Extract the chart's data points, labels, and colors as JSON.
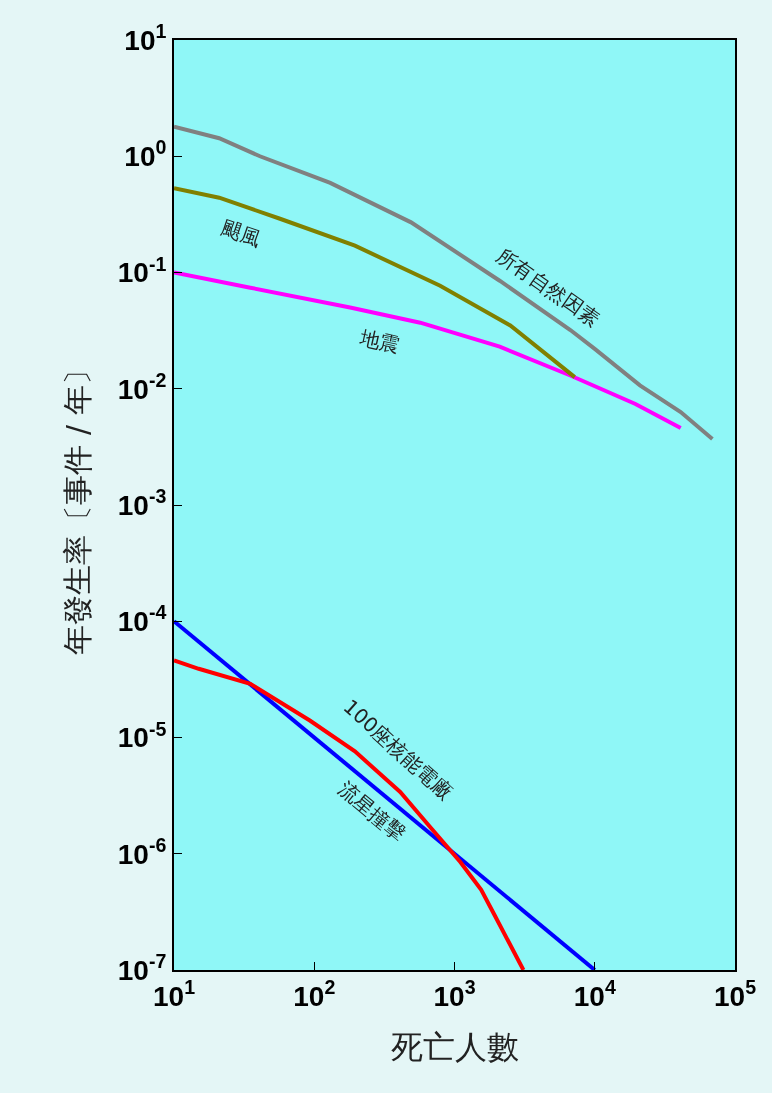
{
  "chart_data": {
    "type": "line",
    "xlabel": "死亡人數",
    "ylabel": "年發生率〔事件 / 年〕",
    "log": "xy",
    "grid": false,
    "legend": false,
    "marker": "none",
    "line_style": "solid",
    "xlim": [
      10,
      100000
    ],
    "ylim": [
      1e-07,
      10
    ],
    "xticks": [
      {
        "value": 10,
        "label": "10$^{1}$"
      },
      {
        "value": 100,
        "label": "10$^{2}$"
      },
      {
        "value": 1000,
        "label": "10$^{3}$"
      },
      {
        "value": 10000,
        "label": "10$^{4}$"
      },
      {
        "value": 100000,
        "label": "10$^{5}$"
      }
    ],
    "yticks": [
      {
        "value": 1e-07,
        "label": "10$^{-7}$"
      },
      {
        "value": 1e-06,
        "label": "10$^{-6}$"
      },
      {
        "value": 1e-05,
        "label": "10$^{-5}$"
      },
      {
        "value": 0.0001,
        "label": "10$^{-4}$"
      },
      {
        "value": 0.001,
        "label": "10$^{-3}$"
      },
      {
        "value": 0.01,
        "label": "10$^{-2}$"
      },
      {
        "value": 0.1,
        "label": "10$^{-1}$"
      },
      {
        "value": 1,
        "label": "10$^{0}$"
      },
      {
        "value": 10,
        "label": "10$^{1}$"
      }
    ],
    "series": [
      {
        "name": "所有自然因素",
        "color": "#808080",
        "x": [
          10,
          21,
          41,
          130,
          490,
          2100,
          6700,
          10000,
          21000,
          41000,
          69000
        ],
        "values": [
          1.8,
          1.43,
          1.0,
          0.59,
          0.27,
          0.085,
          0.032,
          0.022,
          0.0107,
          0.0063,
          0.0037
        ]
      },
      {
        "name": "颶風",
        "color": "#808000",
        "x": [
          10,
          21,
          57,
          195,
          790,
          2500,
          7200
        ],
        "values": [
          0.53,
          0.44,
          0.29,
          0.17,
          0.077,
          0.035,
          0.0126
        ]
      },
      {
        "name": "地震",
        "color": "#ff00ff",
        "x": [
          10,
          35,
          180,
          570,
          2100,
          6700,
          19500,
          41000
        ],
        "values": [
          0.1,
          0.074,
          0.05,
          0.037,
          0.023,
          0.013,
          0.0074,
          0.0046
        ]
      },
      {
        "name": "100座核能電廠",
        "color": "#ff0000",
        "x": [
          10,
          15,
          35,
          93,
          195,
          410,
          670,
          1100,
          1550,
          1950,
          3100
        ],
        "values": [
          4.6e-05,
          3.9e-05,
          2.9e-05,
          1.4e-05,
          7.6e-06,
          3.4e-06,
          1.7e-06,
          8.5e-07,
          4.9e-07,
          2.9e-07,
          1e-07
        ]
      },
      {
        "name": "流星撞擊",
        "color": "#0000ff",
        "x": [
          10,
          10000
        ],
        "values": [
          0.0001,
          1e-07
        ]
      }
    ]
  }
}
